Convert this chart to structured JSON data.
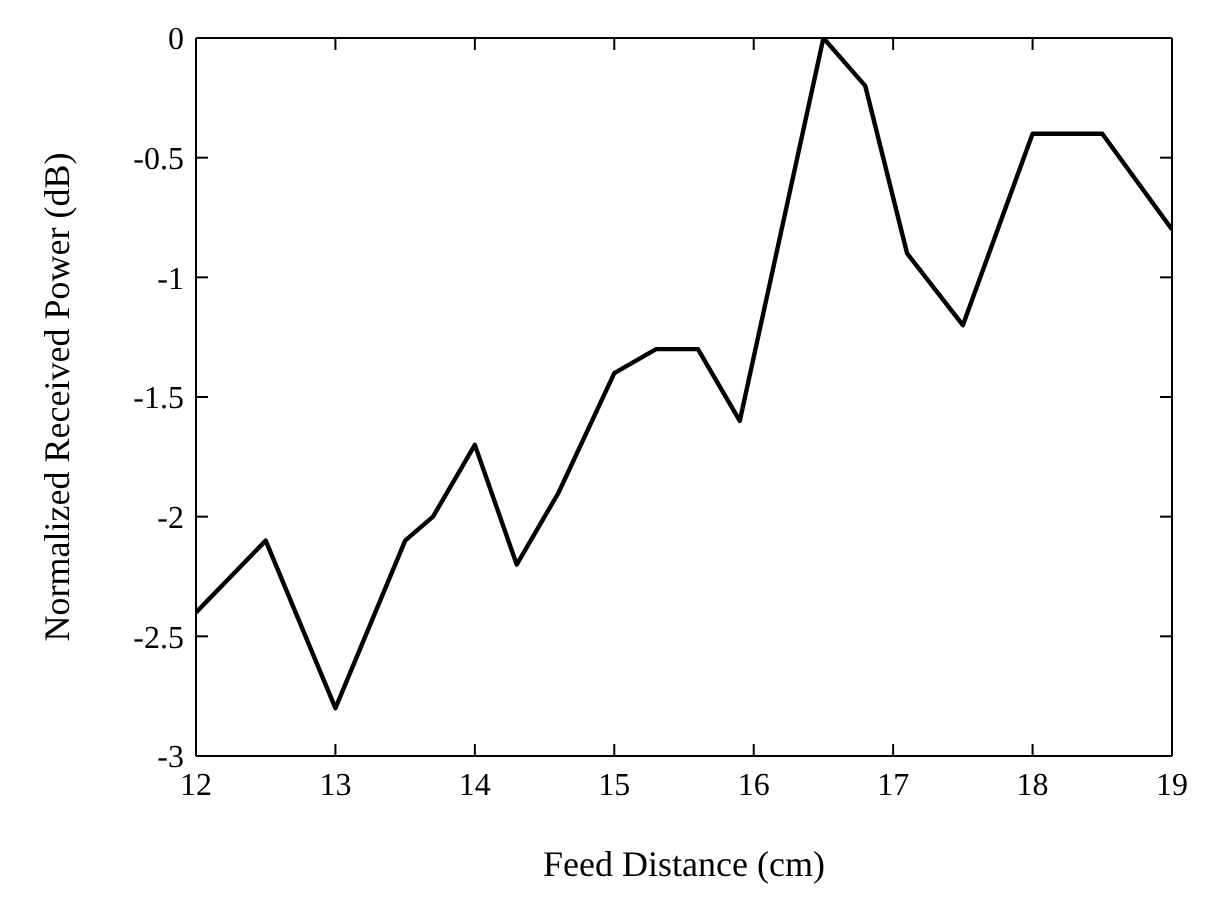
{
  "chart_data": {
    "type": "line",
    "xlabel": "Feed Distance (cm)",
    "ylabel": "Normalized Received Power (dB)",
    "x": [
      12,
      12.5,
      13,
      13.5,
      13.7,
      14,
      14.3,
      14.6,
      15,
      15.3,
      15.6,
      15.9,
      16.5,
      16.8,
      17.1,
      17.5,
      18,
      18.5,
      19
    ],
    "series": [
      {
        "color": "#000000",
        "values": [
          -2.4,
          -2.1,
          -2.8,
          -2.1,
          -2.0,
          -1.7,
          -2.2,
          -1.9,
          -1.4,
          -1.3,
          -1.3,
          -1.6,
          0,
          -0.2,
          -0.9,
          -1.2,
          -0.4,
          -0.4,
          -0.8
        ]
      }
    ],
    "xlim": [
      12,
      19
    ],
    "xticks": [
      12,
      13,
      14,
      15,
      16,
      17,
      18,
      19
    ],
    "ylim": [
      -3,
      0
    ],
    "yticks": [
      -3,
      -2.5,
      -2,
      -1.5,
      -1,
      -0.5,
      0
    ],
    "grid": false,
    "legend": false,
    "marker": "none",
    "line_style": "solid"
  }
}
